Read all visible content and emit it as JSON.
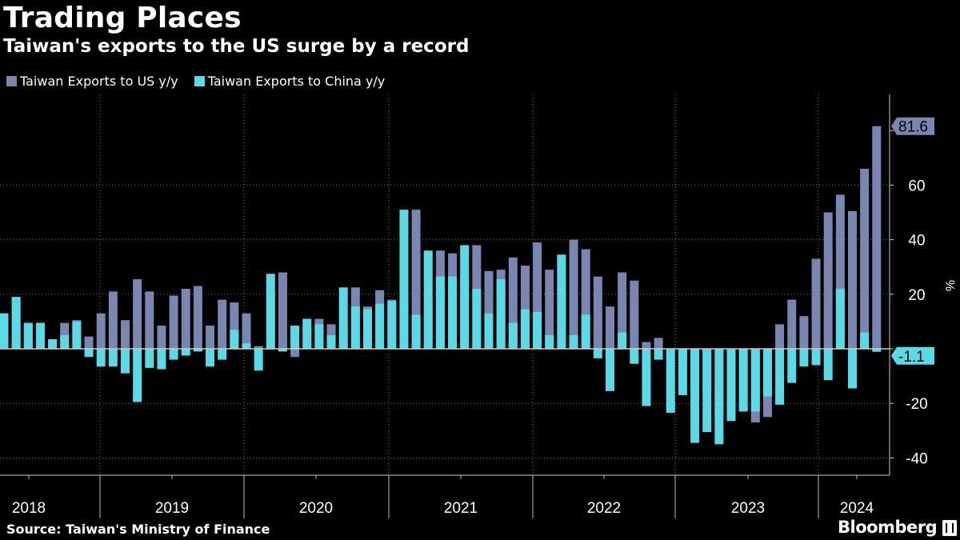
{
  "chart_data": {
    "type": "bar",
    "title": "Trading Places",
    "subtitle": "Taiwan's exports to the US surge by a record",
    "ylabel": "%",
    "ylim": [
      -45,
      93
    ],
    "yticks": [
      -40,
      -20,
      20,
      40,
      60
    ],
    "years": [
      "2018",
      "2019",
      "2020",
      "2021",
      "2022",
      "2023",
      "2024"
    ],
    "series": [
      {
        "name": "Taiwan Exports to US y/y",
        "color": "#7a86b2",
        "values": [
          13,
          19,
          9.5,
          9.5,
          3.5,
          9.5,
          10.5,
          4.5,
          13,
          21,
          10.5,
          25.5,
          21,
          8.5,
          19.5,
          22,
          23,
          8.5,
          18,
          17,
          13,
          1,
          0,
          28,
          -3,
          8.5,
          11,
          9,
          8,
          22.5,
          15.5,
          21.5,
          18,
          17.5,
          51,
          15,
          36,
          35,
          27.5,
          38,
          28.5,
          29,
          33.5,
          30.5,
          39,
          29,
          34.5,
          40,
          36.5,
          26.5,
          15.5,
          28,
          25,
          2.5,
          4,
          0,
          -5,
          -12,
          -15,
          -25,
          -14,
          -22,
          -27,
          -25,
          9,
          18,
          12,
          33,
          50,
          56.5,
          50.5,
          66,
          81.6
        ]
      },
      {
        "name": "Taiwan Exports to China y/y",
        "color": "#5ad9e6",
        "values": [
          13,
          19,
          9.5,
          9.5,
          3.5,
          5,
          10,
          -3,
          -6.5,
          -6.5,
          -9,
          -19.5,
          -7,
          -7.5,
          -4,
          -2.5,
          -1,
          -6.5,
          -4,
          7,
          2,
          -8,
          27.5,
          -1,
          8.5,
          11,
          9,
          5,
          22.5,
          15.5,
          14.5,
          16.5,
          17.5,
          51,
          12.5,
          36,
          26.5,
          26.5,
          38,
          22,
          13,
          25.5,
          9.5,
          14.5,
          13.5,
          5,
          34.5,
          5,
          12.5,
          -3.5,
          -15.5,
          6,
          -5.5,
          -21,
          -4,
          -23.5,
          -17,
          -34.5,
          -30.5,
          -35,
          -26.5,
          -23,
          -23,
          -17.5,
          -20.5,
          -12.5,
          -6.5,
          -6,
          -11.5,
          22,
          -14.5,
          6,
          -1.1
        ]
      }
    ],
    "last_labels": [
      "81.6",
      "-1.1"
    ]
  },
  "legend": [
    "Taiwan Exports to US y/y",
    "Taiwan Exports to China y/y"
  ],
  "source": "Source: Taiwan's Ministry of Finance",
  "brand": "Bloomberg"
}
